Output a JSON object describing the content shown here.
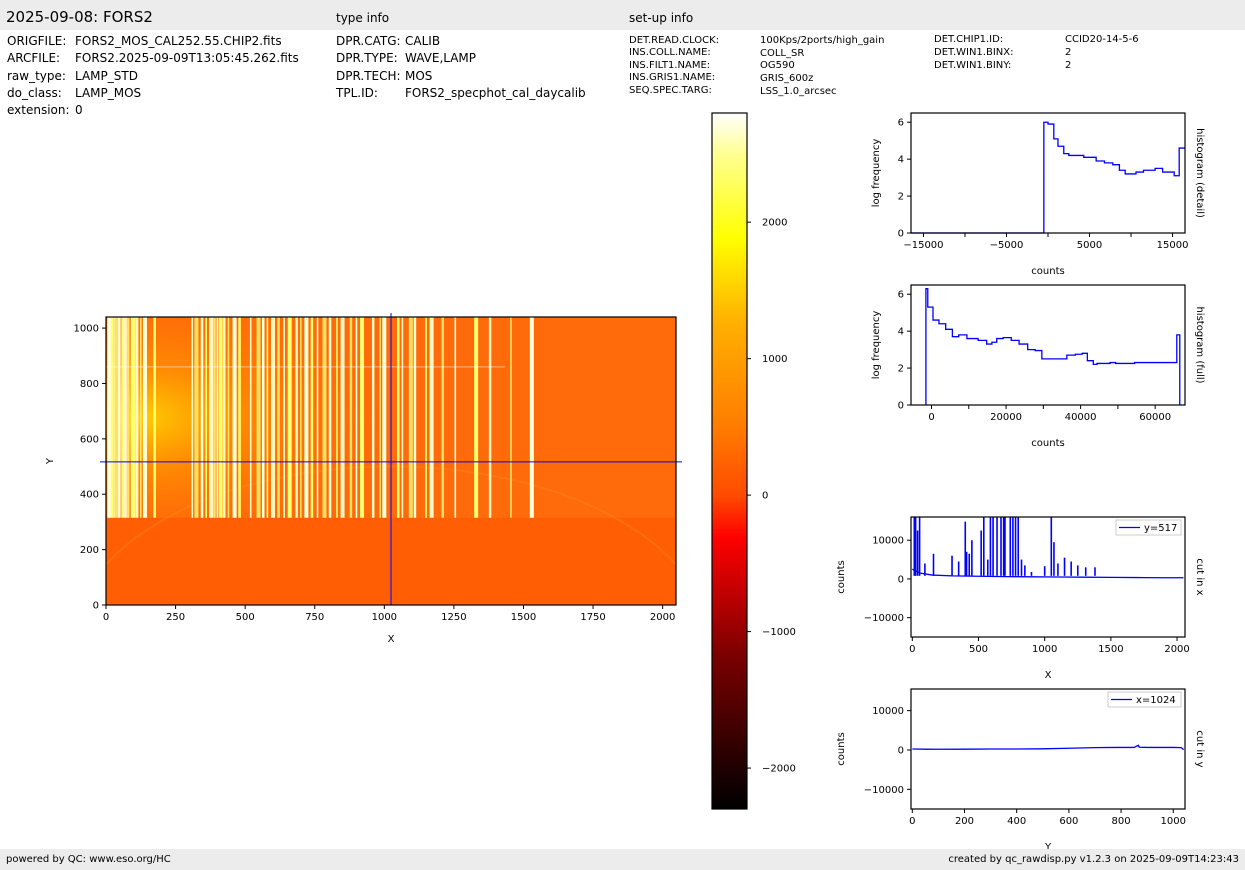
{
  "header": {
    "title": "2025-09-08: FORS2",
    "type_info_heading": "type info",
    "setup_info_heading": "set-up info"
  },
  "file_info": [
    {
      "key": "ORIGFILE:",
      "value": "FORS2_MOS_CAL252.55.CHIP2.fits"
    },
    {
      "key": "ARCFILE:",
      "value": "FORS2.2025-09-09T13:05:45.262.fits"
    },
    {
      "key": "raw_type:",
      "value": "LAMP_STD"
    },
    {
      "key": "do_class:",
      "value": "LAMP_MOS"
    },
    {
      "key": "extension:",
      "value": "0"
    }
  ],
  "type_info": [
    {
      "key": "DPR.CATG:",
      "value": "CALIB"
    },
    {
      "key": "DPR.TYPE:",
      "value": "WAVE,LAMP"
    },
    {
      "key": "DPR.TECH:",
      "value": "MOS"
    },
    {
      "key": "TPL.ID:",
      "value": "FORS2_specphot_cal_daycalib"
    }
  ],
  "setup_info_left": [
    {
      "key": "DET.READ.CLOCK:",
      "value": "100Kps/2ports/high_gain"
    },
    {
      "key": "INS.COLL.NAME:",
      "value": "COLL_SR"
    },
    {
      "key": "INS.FILT1.NAME:",
      "value": "OG590"
    },
    {
      "key": "INS.GRIS1.NAME:",
      "value": "GRIS_600z"
    },
    {
      "key": "SEQ.SPEC.TARG:",
      "value": "LSS_1.0_arcsec"
    }
  ],
  "setup_info_right": [
    {
      "key": "DET.CHIP1.ID:",
      "value": "CCID20-14-5-6"
    },
    {
      "key": "DET.WIN1.BINX:",
      "value": "2"
    },
    {
      "key": "DET.WIN1.BINY:",
      "value": "2"
    }
  ],
  "footer": {
    "left": "powered by QC: www.eso.org/HC",
    "right": "created by qc_rawdisp.py v1.2.3 on 2025-09-09T14:23:43"
  },
  "colors": {
    "line": "#0000ff",
    "background_bar": "#ececec",
    "colormap": "afmhot-like (black-red-orange-yellow-white)"
  },
  "chart_data": [
    {
      "id": "image",
      "type": "heatmap",
      "xlabel": "X",
      "ylabel": "Y",
      "xlim": [
        0,
        2048
      ],
      "ylim": [
        0,
        1040
      ],
      "xticks": [
        0,
        250,
        500,
        750,
        1000,
        1250,
        1500,
        1750,
        2000
      ],
      "yticks": [
        0,
        200,
        400,
        600,
        800,
        1000
      ],
      "crosshair": {
        "x": 1024,
        "y": 517
      },
      "background_level": 300,
      "lower_region_level": 250,
      "lines_start_y": 315,
      "arc_lines_x": [
        12,
        22,
        30,
        38,
        48,
        58,
        68,
        80,
        92,
        100,
        112,
        125,
        140,
        175,
        310,
        325,
        345,
        360,
        378,
        390,
        400,
        412,
        425,
        440,
        462,
        480,
        520,
        548,
        565,
        580,
        600,
        620,
        640,
        660,
        685,
        700,
        720,
        740,
        760,
        785,
        805,
        830,
        850,
        880,
        900,
        920,
        960,
        985,
        1000,
        1050,
        1065,
        1095,
        1110,
        1150,
        1170,
        1210,
        1255,
        1330,
        1380,
        1455,
        1530
      ]
    },
    {
      "id": "colorbar",
      "type": "colorbar",
      "range": [
        -2300,
        2800
      ],
      "ticks": [
        -2000,
        -1000,
        0,
        1000,
        2000
      ],
      "tick_labels": [
        "−2000",
        "−1000",
        "0",
        "1000",
        "2000"
      ]
    },
    {
      "id": "hist-detail",
      "type": "line",
      "step": true,
      "title": "histogram (detail)",
      "xlabel": "counts",
      "ylabel": "log frequency",
      "xlim": [
        -16500,
        16500
      ],
      "ylim": [
        0,
        6.5
      ],
      "xticks": [
        -15000,
        -5000,
        5000,
        15000
      ],
      "yticks": [
        0,
        2,
        4,
        6
      ],
      "x": [
        -16500,
        -500,
        -500,
        0,
        700,
        1200,
        1900,
        2500,
        4300,
        5800,
        6800,
        7800,
        8600,
        9300,
        10600,
        11500,
        12900,
        13800,
        15200,
        15800,
        16500
      ],
      "y": [
        0,
        0,
        6.0,
        5.9,
        5.1,
        4.7,
        4.3,
        4.2,
        4.1,
        3.9,
        3.8,
        3.7,
        3.4,
        3.2,
        3.3,
        3.4,
        3.5,
        3.3,
        3.1,
        4.6,
        4.6
      ]
    },
    {
      "id": "hist-full",
      "type": "line",
      "step": true,
      "title": "histogram (full)",
      "xlabel": "counts",
      "ylabel": "log frequency",
      "xlim": [
        -5500,
        68000
      ],
      "ylim": [
        0,
        6.5
      ],
      "xticks": [
        0,
        20000,
        40000,
        60000
      ],
      "yticks": [
        0,
        2,
        4,
        6
      ],
      "x": [
        -1500,
        -1500,
        -1000,
        400,
        2000,
        3800,
        5600,
        7300,
        8800,
        9500,
        12500,
        14800,
        16200,
        17500,
        19200,
        21400,
        23500,
        25800,
        27800,
        29600,
        32800,
        36300,
        38600,
        40400,
        41800,
        43400,
        44400,
        47900,
        49400,
        52400,
        54500,
        57000,
        60800,
        65800,
        66600,
        66600
      ],
      "y": [
        0,
        6.3,
        5.3,
        4.6,
        4.4,
        4.1,
        3.7,
        3.8,
        3.8,
        3.6,
        3.5,
        3.3,
        3.4,
        3.6,
        3.65,
        3.5,
        3.3,
        3.0,
        2.95,
        2.5,
        2.5,
        2.7,
        2.75,
        2.8,
        2.4,
        2.2,
        2.25,
        2.3,
        2.25,
        2.25,
        2.3,
        2.3,
        2.3,
        3.8,
        3.8,
        0
      ]
    },
    {
      "id": "cut-x",
      "type": "line",
      "title": "cut in x",
      "legend": "y=517",
      "xlabel": "X",
      "ylabel": "counts",
      "xlim": [
        -10,
        2060
      ],
      "ylim": [
        -15000,
        16000
      ],
      "xticks": [
        0,
        500,
        1000,
        1500,
        2000
      ],
      "yticks": [
        -10000,
        0,
        10000
      ],
      "baseline_x": [
        0,
        60,
        150,
        300,
        500,
        700,
        900,
        1100,
        1300,
        1500,
        1700,
        1900,
        2048
      ],
      "baseline_y": [
        2500,
        1500,
        1000,
        800,
        700,
        600,
        550,
        500,
        450,
        400,
        350,
        300,
        300
      ],
      "peaks_x": [
        15,
        25,
        40,
        55,
        95,
        160,
        300,
        350,
        400,
        410,
        430,
        450,
        520,
        540,
        570,
        590,
        610,
        640,
        670,
        690,
        700,
        740,
        760,
        780,
        800,
        825,
        850,
        900,
        1000,
        1050,
        1070,
        1100,
        1150,
        1200,
        1250,
        1310,
        1380
      ],
      "peaks_y": [
        16000,
        16000,
        12500,
        16000,
        4000,
        6500,
        6000,
        4500,
        14800,
        7000,
        6500,
        10000,
        12500,
        16000,
        5000,
        16000,
        16000,
        16000,
        16000,
        16000,
        16000,
        16000,
        16000,
        16000,
        16000,
        5000,
        3500,
        1800,
        3300,
        16000,
        9500,
        4000,
        5500,
        4500,
        3500,
        3000,
        3000
      ]
    },
    {
      "id": "cut-y",
      "type": "line",
      "title": "cut in y",
      "legend": "x=1024",
      "xlabel": "Y",
      "ylabel": "counts",
      "xlim": [
        -5,
        1045
      ],
      "ylim": [
        -15000,
        15500
      ],
      "xticks": [
        0,
        200,
        400,
        600,
        800,
        1000
      ],
      "yticks": [
        -10000,
        0,
        10000
      ],
      "x": [
        0,
        50,
        100,
        200,
        300,
        400,
        500,
        600,
        700,
        780,
        850,
        866,
        870,
        900,
        1000,
        1030,
        1040
      ],
      "y": [
        250,
        200,
        180,
        200,
        250,
        250,
        300,
        450,
        600,
        650,
        650,
        1200,
        700,
        650,
        650,
        600,
        100
      ]
    }
  ]
}
